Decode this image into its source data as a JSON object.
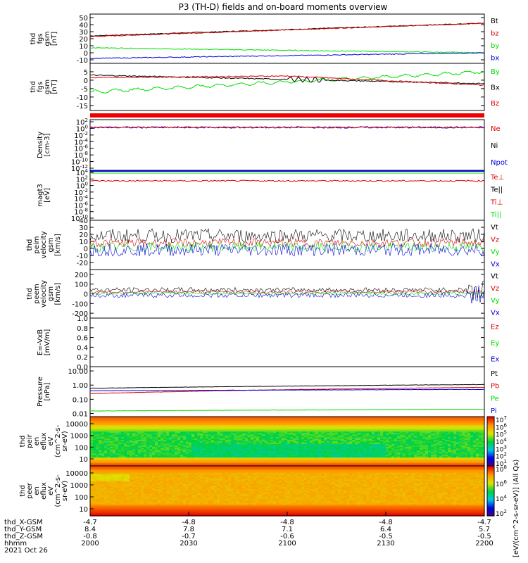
{
  "title": "P3 (TH-D) fields and on-board moments overview",
  "colors": {
    "black": "#000000",
    "red": "#dd0000",
    "green": "#00dd00",
    "blue": "#0000dd"
  },
  "time_axis": {
    "tick_labels": [
      "2000",
      "2030",
      "2100",
      "2130",
      "2200"
    ],
    "rows": [
      {
        "label": "thd_X-GSM",
        "values": [
          "-4.7",
          "-4.8",
          "-4.8",
          "-4.8",
          "-4.7"
        ]
      },
      {
        "label": "thd_Y-GSM",
        "values": [
          "8.4",
          "7.8",
          "7.1",
          "6.4",
          "5.7"
        ]
      },
      {
        "label": "thd_Z-GSM",
        "values": [
          "-0.8",
          "-0.7",
          "-0.6",
          "-0.5",
          "-0.5"
        ]
      },
      {
        "label": "hhmm",
        "values": [
          "",
          "",
          "",
          "",
          ""
        ]
      }
    ],
    "date": "2021 Oct 26"
  },
  "colorbar_label": "[eV/(cm^2-s-sr-eV)] (All Qs)",
  "chart_data": [
    {
      "type": "line",
      "ylabel": [
        "thd",
        "fgs",
        "gsm",
        "[nT]"
      ],
      "ylim": [
        -15,
        55
      ],
      "yticks": [
        -10,
        0,
        10,
        20,
        30,
        40,
        50
      ],
      "series": [
        {
          "name": "Bt",
          "color": "black",
          "start": 24,
          "end": 42
        },
        {
          "name": "bz",
          "color": "red",
          "start": 23,
          "end": 42
        },
        {
          "name": "by",
          "color": "green",
          "start": 7,
          "end": 0
        },
        {
          "name": "bx",
          "color": "blue",
          "start": -8,
          "end": 0
        }
      ]
    },
    {
      "type": "line",
      "ylabel": [
        "thd",
        "fgs",
        "gsm",
        "[nT]"
      ],
      "ylim": [
        -18,
        10
      ],
      "yticks": [
        -15,
        -10,
        -5,
        0,
        5
      ],
      "series": [
        {
          "name": "By",
          "color": "green",
          "start": -7,
          "end": 5
        },
        {
          "name": "Bx",
          "color": "black",
          "start": 3,
          "end": -2
        },
        {
          "name": "Bz",
          "color": "red",
          "start": 1.5,
          "end": -3
        }
      ]
    },
    {
      "type": "line",
      "ylabel": [
        "Density",
        "[cm-3]"
      ],
      "yticks": [
        "10^2",
        "10^0",
        "10^-2",
        "10^-4",
        "10^-6",
        "10^-8",
        "10^-10",
        "10^-12"
      ],
      "series": [
        {
          "name": "Ne",
          "color": "red"
        },
        {
          "name": "Ni",
          "color": "black"
        },
        {
          "name": "Npot",
          "color": "blue"
        }
      ]
    },
    {
      "type": "line",
      "ylabel": [
        "magt3",
        "[eV]"
      ],
      "yticks": [
        "10^4",
        "10^2",
        "10^0",
        "10^-2",
        "10^-4",
        "10^-6",
        "10^-8",
        "10^-10"
      ],
      "series": [
        {
          "name": "Te⊥",
          "color": "red"
        },
        {
          "name": "Te||",
          "color": "black"
        },
        {
          "name": "Ti⊥",
          "color": "red"
        },
        {
          "name": "Ti||",
          "color": "green"
        }
      ]
    },
    {
      "type": "line",
      "ylabel": [
        "thd",
        "peim",
        "velocity",
        "gsm",
        "[km/s]"
      ],
      "ylim": [
        -30,
        40
      ],
      "yticks": [
        -20,
        -10,
        0,
        10,
        20,
        30,
        40
      ],
      "series": [
        {
          "name": "Vt",
          "color": "black"
        },
        {
          "name": "Vz",
          "color": "red"
        },
        {
          "name": "Vy",
          "color": "green"
        },
        {
          "name": "Vx",
          "color": "blue"
        }
      ]
    },
    {
      "type": "line",
      "ylabel": [
        "thd",
        "peem",
        "velocity",
        "gsm",
        "[km/s]"
      ],
      "ylim": [
        -250,
        250
      ],
      "yticks": [
        -200,
        -100,
        0,
        100,
        200
      ],
      "series": [
        {
          "name": "Vt",
          "color": "black"
        },
        {
          "name": "Vz",
          "color": "red"
        },
        {
          "name": "Vy",
          "color": "green"
        },
        {
          "name": "Vx",
          "color": "blue"
        }
      ]
    },
    {
      "type": "line",
      "ylabel": [
        "E=-VxB",
        "[mV/m]"
      ],
      "ylim": [
        0,
        1
      ],
      "yticks": [
        "0.0",
        "0.2",
        "0.4",
        "0.6",
        "0.8",
        "1.0"
      ],
      "series": [
        {
          "name": "Ez",
          "color": "red"
        },
        {
          "name": "Ey",
          "color": "green"
        },
        {
          "name": "Ex",
          "color": "blue"
        }
      ]
    },
    {
      "type": "line",
      "ylabel": [
        "Pressure",
        "[nPa]"
      ],
      "yscale": "log",
      "yticks": [
        "10.00",
        "1.00",
        "0.10",
        "0.01"
      ],
      "series": [
        {
          "name": "Pt",
          "color": "black",
          "start": 0.6,
          "end": 1.1
        },
        {
          "name": "Pb",
          "color": "red",
          "start": 0.25,
          "end": 0.7
        },
        {
          "name": "Pe",
          "color": "green",
          "start": 0.015,
          "end": 0.02
        },
        {
          "name": "Pi",
          "color": "blue",
          "start": 0.4,
          "end": 0.5
        }
      ]
    },
    {
      "type": "heatmap",
      "ylabel": [
        "thd",
        "peir",
        "en",
        "eflux",
        "eV",
        "(cm^2-s-",
        "sr-eV)"
      ],
      "yscale": "log",
      "yticks": [
        "10000",
        "1000",
        "100",
        "10"
      ],
      "colorbar_ticks": [
        "10^7",
        "10^6",
        "10^5",
        "10^4",
        "10^3",
        "10^2",
        "10^1"
      ]
    },
    {
      "type": "heatmap",
      "ylabel": [
        "thd",
        "peer",
        "en",
        "eflux",
        "eV",
        "(cm^2-s-",
        "sr-eV)"
      ],
      "yscale": "log",
      "yticks": [
        "10000",
        "1000",
        "100",
        "10"
      ],
      "colorbar_ticks": [
        "10^8",
        "10^6",
        "10^4",
        "10^2"
      ]
    }
  ]
}
